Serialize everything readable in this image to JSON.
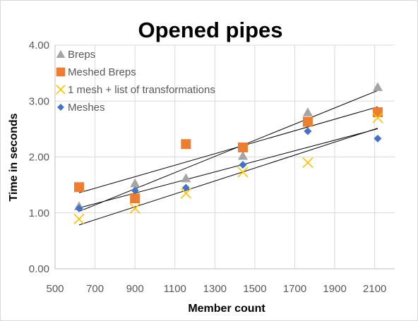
{
  "chart_data": {
    "type": "scatter",
    "title": "Opened pipes",
    "xlabel": "Member count",
    "ylabel": "Time in seconds",
    "xlim": [
      500,
      2200
    ],
    "ylim": [
      0,
      4
    ],
    "x_ticks": [
      500,
      700,
      900,
      1100,
      1300,
      1500,
      1700,
      1900,
      2100
    ],
    "x_tick_labels": [
      "500",
      "700",
      "900",
      "1100",
      "1300",
      "1500",
      "1700",
      "1900",
      "2100"
    ],
    "y_ticks": [
      0,
      1,
      2,
      3,
      4
    ],
    "y_tick_labels": [
      "0.00",
      "1.00",
      "2.00",
      "3.00",
      "4.00"
    ],
    "grid": true,
    "legend_position": "top-left",
    "trendlines": "linear",
    "series": [
      {
        "name": "Breps",
        "marker": "triangle",
        "color": "#a5a5a5",
        "x": [
          620,
          900,
          1155,
          1440,
          1765,
          2115
        ],
        "y": [
          1.12,
          1.53,
          1.62,
          2.02,
          2.8,
          3.25
        ]
      },
      {
        "name": "Meshed Breps",
        "marker": "square",
        "color": "#ed7d31",
        "x": [
          620,
          900,
          1155,
          1440,
          1765,
          2115
        ],
        "y": [
          1.46,
          1.26,
          2.23,
          2.17,
          2.63,
          2.8
        ]
      },
      {
        "name": "1 mesh + list of transformations",
        "marker": "x",
        "color": "#ffc000",
        "x": [
          620,
          900,
          1155,
          1440,
          1765,
          2115
        ],
        "y": [
          0.89,
          1.08,
          1.35,
          1.73,
          1.9,
          2.7
        ]
      },
      {
        "name": "Meshes",
        "marker": "diamond",
        "color": "#4472c4",
        "x": [
          620,
          900,
          1155,
          1440,
          1765,
          2115
        ],
        "y": [
          1.08,
          1.4,
          1.45,
          1.86,
          2.46,
          2.33
        ]
      }
    ]
  }
}
